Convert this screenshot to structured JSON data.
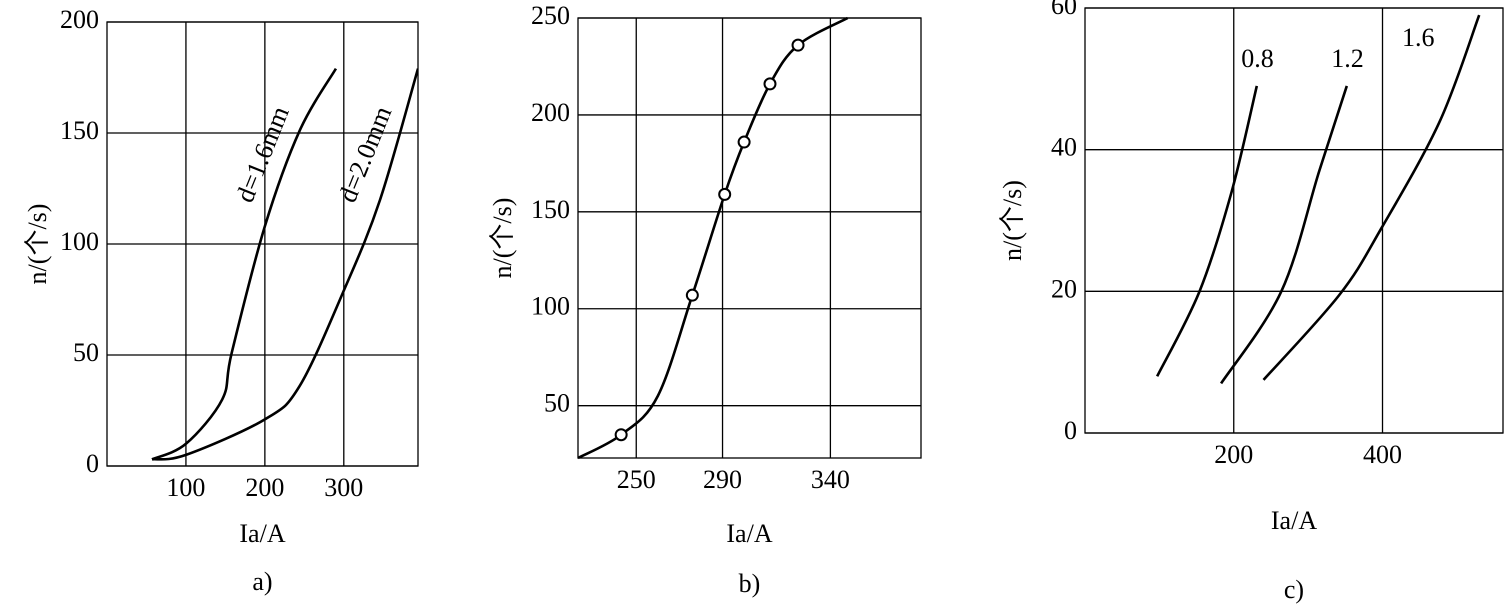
{
  "chart_data": [
    {
      "type": "line",
      "caption": "a)",
      "x_label": "Ia/A",
      "y_label": "n/(个/s)",
      "xlim": [
        0,
        394
      ],
      "ylim": [
        0,
        200
      ],
      "xticks": [
        100,
        200,
        300
      ],
      "yticks": [
        0,
        50,
        100,
        150,
        200
      ],
      "grid": true,
      "series": [
        {
          "color": "#000000",
          "x": [
            57,
            100,
            146,
            158,
            200,
            244,
            290
          ],
          "values": [
            3,
            10,
            30,
            51,
            108,
            151,
            179
          ]
        },
        {
          "color": "#000000",
          "x": [
            57,
            100,
            200,
            244,
            300,
            346,
            394
          ],
          "values": [
            3,
            5,
            21,
            36,
            79,
            120,
            179
          ]
        }
      ],
      "annotations": [
        {
          "text": "d=1.6mm",
          "x": 200,
          "y": 140
        },
        {
          "text": "d=2.0mm",
          "x": 330,
          "y": 140
        }
      ]
    },
    {
      "type": "line",
      "caption": "b)",
      "x_label": "Ia/A",
      "y_label": "n/(个/s)",
      "xlim": [
        223,
        382
      ],
      "ylim": [
        23,
        250
      ],
      "xticks": [
        250,
        290,
        340
      ],
      "yticks": [
        50,
        100,
        150,
        200,
        250
      ],
      "grid": true,
      "series": [
        {
          "color": "#000000",
          "x": [
            223,
            243,
            260,
            276,
            291,
            300,
            312,
            325,
            348
          ],
          "values": [
            23,
            35,
            55,
            107,
            159,
            186,
            216,
            236,
            250
          ]
        },
        {
          "color": "#000000",
          "markers": true,
          "x": [
            243,
            276,
            291,
            300,
            312,
            325
          ],
          "values": [
            35,
            107,
            159,
            186,
            216,
            236
          ]
        }
      ]
    },
    {
      "type": "line",
      "caption": "c)",
      "x_label": "Ia/A",
      "y_label": "n/(个/s)",
      "xlim": [
        0,
        562
      ],
      "ylim": [
        0,
        60
      ],
      "xticks": [
        200,
        400
      ],
      "yticks": [
        0,
        20,
        40,
        60
      ],
      "grid": true,
      "series": [
        {
          "color": "#000000",
          "x": [
            97,
            154,
            197,
            231
          ],
          "values": [
            8,
            20,
            34,
            49
          ]
        },
        {
          "color": "#000000",
          "x": [
            183,
            264,
            315,
            352
          ],
          "values": [
            7,
            20,
            37,
            49
          ]
        },
        {
          "color": "#000000",
          "x": [
            240,
            342,
            399,
            477,
            530
          ],
          "values": [
            7.5,
            19.5,
            29,
            44,
            59
          ]
        }
      ],
      "annotations": [
        {
          "text": "0.8",
          "x": 232,
          "y": 52.5
        },
        {
          "text": "1.2",
          "x": 353,
          "y": 52.5
        },
        {
          "text": "1.6",
          "x": 448,
          "y": 55.5
        }
      ]
    }
  ]
}
